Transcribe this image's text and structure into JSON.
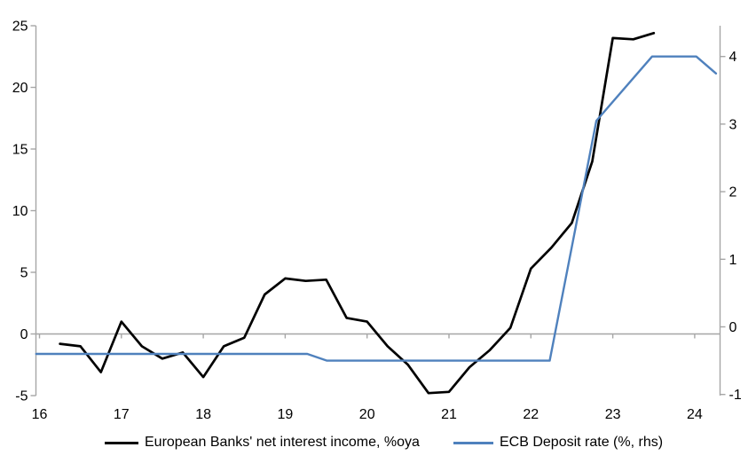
{
  "chart_data": {
    "type": "line",
    "title": "",
    "x_axis": {
      "ticks": [
        16,
        17,
        18,
        19,
        20,
        21,
        22,
        23,
        24
      ],
      "min": 15.95,
      "max": 24.31
    },
    "left_axis": {
      "ticks": [
        -5,
        0,
        5,
        10,
        15,
        20,
        25
      ],
      "min": -5,
      "max": 25
    },
    "right_axis": {
      "ticks": [
        -1,
        0,
        1,
        2,
        3,
        4
      ],
      "min": -1,
      "max": 4.45
    },
    "grid": "zero-line-only",
    "legend_position": "bottom",
    "series": [
      {
        "name": "European Banks' net interest income, %oya",
        "axis": "left",
        "color": "#000000",
        "stroke_width": 2.7,
        "x": [
          16.25,
          16.5,
          16.75,
          17.0,
          17.25,
          17.5,
          17.75,
          18.0,
          18.25,
          18.5,
          18.75,
          19.0,
          19.25,
          19.5,
          19.75,
          20.0,
          20.25,
          20.5,
          20.75,
          21.0,
          21.25,
          21.5,
          21.75,
          22.0,
          22.25,
          22.5,
          22.75,
          23.0,
          23.25,
          23.5
        ],
        "values": [
          -0.8,
          -1.0,
          -3.1,
          1.0,
          -1.0,
          -2.0,
          -1.5,
          -3.5,
          -1.0,
          -0.3,
          3.2,
          4.5,
          4.3,
          4.4,
          1.3,
          1.0,
          -1.0,
          -2.5,
          -4.8,
          -4.7,
          -2.7,
          -1.3,
          0.5,
          5.3,
          7.0,
          9.0,
          14.0,
          24.0,
          23.9,
          24.4
        ]
      },
      {
        "name": "ECB Deposit rate (%, rhs)",
        "axis": "right",
        "color": "#4f81bd",
        "stroke_width": 2.4,
        "x": [
          15.96,
          19.27,
          19.51,
          22.23,
          22.8,
          23.48,
          24.02,
          24.26
        ],
        "values": [
          -0.4,
          -0.4,
          -0.5,
          -0.5,
          3.05,
          4.0,
          4.0,
          3.75
        ]
      }
    ]
  },
  "legend": {
    "items": [
      {
        "label": "European Banks' net interest income, %oya"
      },
      {
        "label": "ECB Deposit rate (%, rhs)"
      }
    ]
  },
  "colors": {
    "background": "#ffffff",
    "axis": "#a6a6a6",
    "text": "#000000",
    "series1": "#000000",
    "series2": "#4f81bd"
  }
}
